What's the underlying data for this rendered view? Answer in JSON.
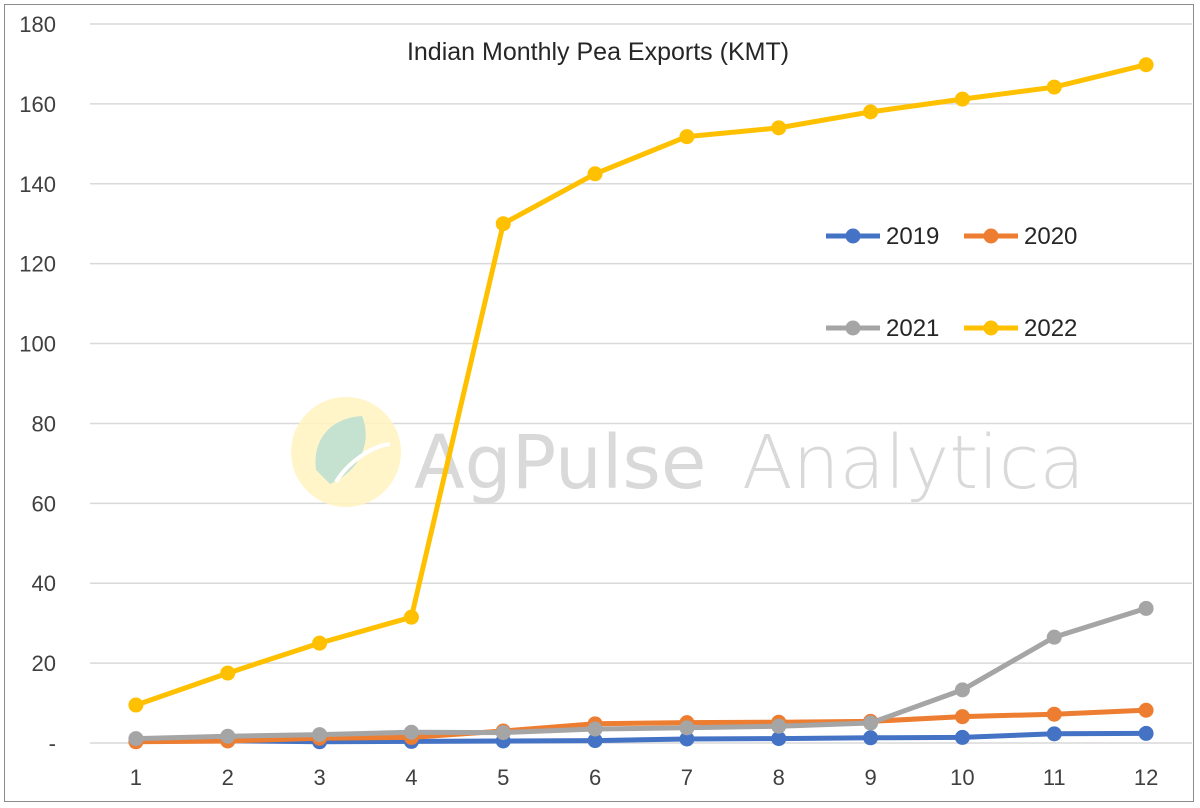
{
  "colors": {
    "2019": "#4472C4",
    "2020": "#ED7D31",
    "2021": "#A5A5A5",
    "2022": "#FFC000",
    "grid": "#d9d9d9",
    "watermark_text": "#d9d9d9"
  },
  "watermark": {
    "brand": "AgPulse",
    "product": "Analytica",
    "icon": "leaf-logo-icon"
  },
  "chart_data": {
    "type": "line",
    "title": "Indian Monthly Pea Exports (KMT)",
    "xlabel": "",
    "ylabel": "",
    "x": [
      "1",
      "2",
      "3",
      "4",
      "5",
      "6",
      "7",
      "8",
      "9",
      "10",
      "11",
      "12"
    ],
    "ylim": [
      0,
      180
    ],
    "yticks": [
      0,
      20,
      40,
      60,
      80,
      100,
      120,
      140,
      160,
      180
    ],
    "ytick_labels": [
      "-",
      "20",
      "40",
      "60",
      "80",
      "100",
      "120",
      "140",
      "160",
      "180"
    ],
    "grid": true,
    "legend": "right",
    "series": [
      {
        "name": "2019",
        "values": [
          0.5,
          0.6,
          0.3,
          0.4,
          0.5,
          0.6,
          1.0,
          1.1,
          1.3,
          1.4,
          2.3,
          2.4
        ]
      },
      {
        "name": "2020",
        "values": [
          0.3,
          0.5,
          1.2,
          1.4,
          3.0,
          4.8,
          5.1,
          5.2,
          5.4,
          6.6,
          7.2,
          8.2
        ]
      },
      {
        "name": "2021",
        "values": [
          1.1,
          1.7,
          2.1,
          2.7,
          2.6,
          3.5,
          3.8,
          4.2,
          5.0,
          13.3,
          26.5,
          33.7
        ]
      },
      {
        "name": "2022",
        "values": [
          9.5,
          17.5,
          25.0,
          31.5,
          130.0,
          142.5,
          151.8,
          154.0,
          158.0,
          161.2,
          164.2,
          169.8
        ]
      }
    ]
  }
}
